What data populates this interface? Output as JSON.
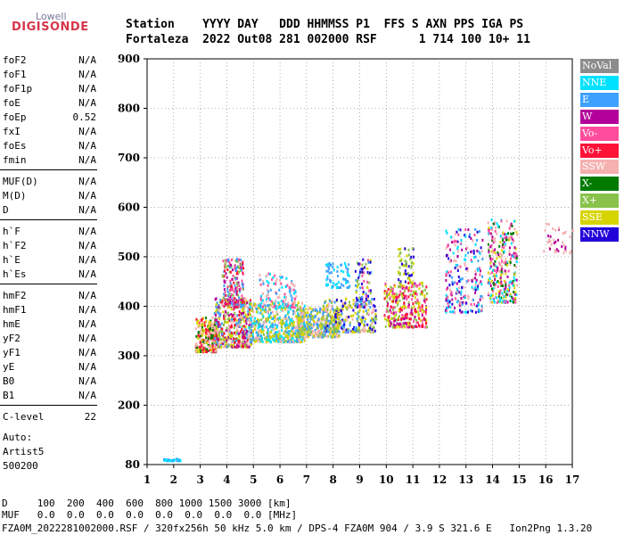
{
  "logo": {
    "line1": "Lowell",
    "line2": "DIGISONDE"
  },
  "header": {
    "row1": "Station    YYYY DAY   DDD HHMMSS P1  FFS S AXN PPS IGA PS",
    "row2": "Fortaleza  2022 Out08 281 002000 RSF      1 714 100 10+ 11"
  },
  "params": [
    {
      "name": "foF2",
      "value": "N/A"
    },
    {
      "name": "foF1",
      "value": "N/A"
    },
    {
      "name": "foF1p",
      "value": "N/A"
    },
    {
      "name": "foE",
      "value": "N/A"
    },
    {
      "name": "foEp",
      "value": "0.52"
    },
    {
      "name": "fxI",
      "value": "N/A"
    },
    {
      "name": "foEs",
      "value": "N/A"
    },
    {
      "name": "fmin",
      "value": "N/A"
    },
    {
      "name": "MUF(D)",
      "value": "N/A"
    },
    {
      "name": "M(D)",
      "value": "N/A"
    },
    {
      "name": "D",
      "value": "N/A"
    },
    {
      "name": "h`F",
      "value": "N/A"
    },
    {
      "name": "h`F2",
      "value": "N/A"
    },
    {
      "name": "h`E",
      "value": "N/A"
    },
    {
      "name": "h`Es",
      "value": "N/A"
    },
    {
      "name": "hmF2",
      "value": "N/A"
    },
    {
      "name": "hmF1",
      "value": "N/A"
    },
    {
      "name": "hmE",
      "value": "N/A"
    },
    {
      "name": "yF2",
      "value": "N/A"
    },
    {
      "name": "yF1",
      "value": "N/A"
    },
    {
      "name": "yE",
      "value": "N/A"
    },
    {
      "name": "B0",
      "value": "N/A"
    },
    {
      "name": "B1",
      "value": "N/A"
    },
    {
      "name": "C-level",
      "value": "22"
    }
  ],
  "auto": {
    "line1": "Auto:",
    "line2": "Artist5",
    "line3": "500200"
  },
  "legend": [
    {
      "label": "NoVal",
      "color": "#8c8c8c"
    },
    {
      "label": "NNE",
      "color": "#00e1ff"
    },
    {
      "label": "E",
      "color": "#3ea0ff"
    },
    {
      "label": "W",
      "color": "#b4009a"
    },
    {
      "label": "Vo-",
      "color": "#ff4d9d"
    },
    {
      "label": "Vo+",
      "color": "#ff1238"
    },
    {
      "label": "SSW",
      "color": "#f5b0b0"
    },
    {
      "label": "X-",
      "color": "#007a00"
    },
    {
      "label": "X+",
      "color": "#88c24a"
    },
    {
      "label": "SSE",
      "color": "#d6d400"
    },
    {
      "label": "NNW",
      "color": "#2200d8"
    }
  ],
  "bottom": {
    "d_row": "D     100  200  400  600  800 1000 1500 3000 [km]",
    "muf_row": "MUF   0.0  0.0  0.0  0.0  0.0  0.0  0.0  0.0 [MHz]",
    "footer": "FZA0M_2022281002000.RSF / 320fx256h 50 kHz 5.0 km / DPS-4 FZA0M 904 / 3.9 S 321.6 E   Ion2Png 1.3.20"
  },
  "chart_data": {
    "type": "scatter",
    "title": "",
    "xlabel": "",
    "ylabel": "",
    "xlim": [
      1,
      17
    ],
    "ylim": [
      80,
      900
    ],
    "xticks": [
      1,
      2,
      3,
      4,
      5,
      6,
      7,
      8,
      9,
      10,
      11,
      12,
      13,
      14,
      15,
      16,
      17
    ],
    "yticks": [
      80,
      200,
      300,
      400,
      500,
      600,
      700,
      800,
      900
    ],
    "x_unit": "MHz",
    "y_unit": "km",
    "clusters": [
      {
        "xmin": 2.8,
        "xmax": 3.6,
        "ymin": 310,
        "ymax": 380,
        "colors": [
          "SSE",
          "SSW",
          "Vo+",
          "X-"
        ],
        "density": 260
      },
      {
        "xmin": 3.5,
        "xmax": 4.9,
        "ymin": 320,
        "ymax": 420,
        "colors": [
          "SSE",
          "SSW",
          "E",
          "Vo+",
          "W",
          "X+"
        ],
        "density": 500
      },
      {
        "xmin": 3.8,
        "xmax": 4.6,
        "ymin": 400,
        "ymax": 500,
        "colors": [
          "Vo-",
          "W",
          "E",
          "Vo+",
          "X+"
        ],
        "density": 180
      },
      {
        "xmin": 4.8,
        "xmax": 6.9,
        "ymin": 330,
        "ymax": 410,
        "colors": [
          "SSE",
          "SSW",
          "E",
          "X+",
          "NNE"
        ],
        "density": 500
      },
      {
        "xmin": 5.2,
        "xmax": 6.6,
        "ymin": 400,
        "ymax": 470,
        "colors": [
          "E",
          "NNE",
          "SSW",
          "Vo-"
        ],
        "density": 120
      },
      {
        "xmin": 6.6,
        "xmax": 8.2,
        "ymin": 340,
        "ymax": 400,
        "colors": [
          "SSE",
          "SSW",
          "X+",
          "E"
        ],
        "density": 380
      },
      {
        "xmin": 7.7,
        "xmax": 8.6,
        "ymin": 440,
        "ymax": 490,
        "colors": [
          "NNE",
          "E"
        ],
        "density": 70
      },
      {
        "xmin": 7.6,
        "xmax": 9.6,
        "ymin": 350,
        "ymax": 420,
        "colors": [
          "SSE",
          "X+",
          "E",
          "SSW",
          "NNW"
        ],
        "density": 280
      },
      {
        "xmin": 8.8,
        "xmax": 9.4,
        "ymin": 400,
        "ymax": 500,
        "colors": [
          "SSE",
          "NNW",
          "E",
          "X+",
          "Vo-"
        ],
        "density": 90
      },
      {
        "xmin": 9.9,
        "xmax": 11.5,
        "ymin": 360,
        "ymax": 450,
        "colors": [
          "W",
          "Vo-",
          "Vo+",
          "SSE",
          "X+"
        ],
        "density": 320
      },
      {
        "xmin": 10.4,
        "xmax": 11.0,
        "ymin": 450,
        "ymax": 520,
        "colors": [
          "SSE",
          "NNW",
          "X+"
        ],
        "density": 60
      },
      {
        "xmin": 12.2,
        "xmax": 13.6,
        "ymin": 390,
        "ymax": 560,
        "colors": [
          "W",
          "NNE",
          "E",
          "Vo-",
          "NNW",
          "SSW"
        ],
        "density": 240
      },
      {
        "xmin": 13.8,
        "xmax": 14.9,
        "ymin": 410,
        "ymax": 580,
        "colors": [
          "W",
          "SSE",
          "X-",
          "Vo-",
          "SSW",
          "NNE"
        ],
        "density": 300
      },
      {
        "xmin": 15.9,
        "xmax": 17.0,
        "ymin": 510,
        "ymax": 570,
        "colors": [
          "SSW",
          "W"
        ],
        "density": 40
      },
      {
        "xmin": 1.6,
        "xmax": 2.3,
        "ymin": 90,
        "ymax": 94,
        "colors": [
          "E",
          "NNE"
        ],
        "density": 30
      }
    ]
  }
}
